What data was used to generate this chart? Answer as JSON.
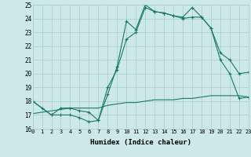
{
  "xlabel": "Humidex (Indice chaleur)",
  "bg_color": "#cce8e8",
  "grid_color": "#aacccc",
  "line_color": "#1a7a6a",
  "x_min": 0,
  "x_max": 23,
  "y_min": 16,
  "y_max": 25,
  "line1_x": [
    0,
    1,
    2,
    3,
    4,
    5,
    6,
    7,
    8,
    9,
    10,
    11,
    12,
    13,
    14,
    15,
    16,
    17,
    18,
    19,
    20,
    21,
    22,
    23
  ],
  "line1_y": [
    18.0,
    17.5,
    17.0,
    17.0,
    17.0,
    16.8,
    16.5,
    16.6,
    18.5,
    20.5,
    23.8,
    23.2,
    25.0,
    24.5,
    24.4,
    24.2,
    24.1,
    24.8,
    24.1,
    23.3,
    21.0,
    20.0,
    18.2,
    18.3
  ],
  "line2_x": [
    0,
    2,
    3,
    4,
    5,
    6,
    7,
    8,
    9,
    10,
    11,
    12,
    13,
    14,
    15,
    16,
    17,
    18,
    19,
    20,
    21,
    22,
    23
  ],
  "line2_y": [
    18.0,
    17.0,
    17.5,
    17.5,
    17.3,
    17.2,
    16.6,
    19.0,
    20.3,
    22.5,
    23.0,
    24.8,
    24.5,
    24.4,
    24.2,
    24.0,
    24.1,
    24.1,
    23.3,
    21.5,
    21.0,
    20.0,
    20.1
  ],
  "line3_x": [
    0,
    1,
    2,
    3,
    4,
    5,
    6,
    7,
    8,
    9,
    10,
    11,
    12,
    13,
    14,
    15,
    16,
    17,
    18,
    19,
    20,
    21,
    22,
    23
  ],
  "line3_y": [
    17.1,
    17.2,
    17.3,
    17.4,
    17.5,
    17.5,
    17.5,
    17.5,
    17.7,
    17.8,
    17.9,
    17.9,
    18.0,
    18.1,
    18.1,
    18.1,
    18.2,
    18.2,
    18.3,
    18.4,
    18.4,
    18.4,
    18.4,
    18.3
  ]
}
